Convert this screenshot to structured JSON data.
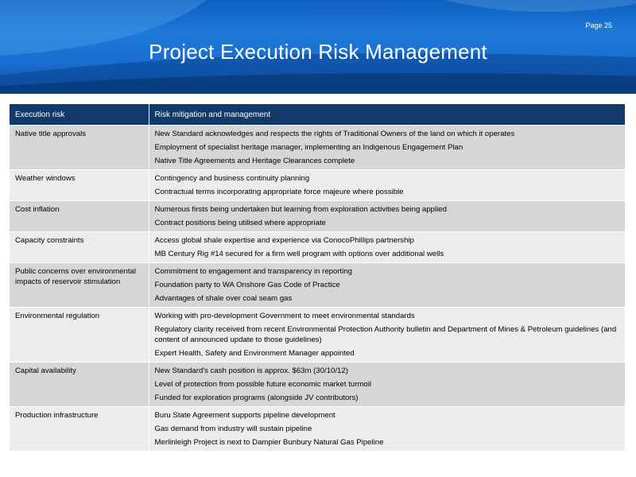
{
  "header": {
    "page_label": "Page 25",
    "title": "Project Execution Risk Management"
  },
  "table": {
    "headers": [
      "Execution risk",
      "Risk mitigation and management"
    ],
    "rows": [
      {
        "risk": "Native title approvals",
        "mitigations": [
          "New Standard acknowledges and respects the rights of Traditional Owners of the land on which it operates",
          "Employment of specialist heritage manager, implementing an Indigenous Engagement Plan",
          "Native Title Agreements and Heritage Clearances complete"
        ]
      },
      {
        "risk": "Weather windows",
        "mitigations": [
          "Contingency and business continuity planning",
          "Contractual terms incorporating appropriate force majeure where possible"
        ]
      },
      {
        "risk": "Cost inflation",
        "mitigations": [
          "Numerous firsts being undertaken but learning from exploration activities being applied",
          "Contract positions being utilised where appropriate"
        ]
      },
      {
        "risk": "Capacity constraints",
        "mitigations": [
          "Access global shale expertise and experience via ConocoPhillips partnership",
          "MB Century Rig #14 secured for a firm well program with options over additional wells"
        ]
      },
      {
        "risk": "Public concerns over environmental impacts of reservoir stimulation",
        "mitigations": [
          "Commitment to engagement and transparency in reporting",
          "Foundation party to WA Onshore Gas Code of Practice",
          "Advantages of shale over coal seam gas"
        ]
      },
      {
        "risk": "Environmental regulation",
        "mitigations": [
          "Working with pro-development Government to meet environmental standards",
          "Regulatory clarity received from recent Environmental Protection Authority bulletin and Department of Mines & Petroleum guidelines (and content of announced update to those guidelines)",
          "Expert Health, Safety and Environment Manager appointed"
        ]
      },
      {
        "risk": "Capital availability",
        "mitigations": [
          "New Standard's cash position is approx. $63m (30/10/12)",
          "Level of protection from possible future economic market turmoil",
          "Funded for exploration programs (alongside JV contributors)"
        ]
      },
      {
        "risk": "Production infrastructure",
        "mitigations": [
          "Buru State Agreement supports pipeline development",
          "Gas demand from industry will sustain pipeline",
          "Merlinleigh Project is next to Dampier Bunbury Natural Gas Pipeline"
        ]
      }
    ]
  }
}
